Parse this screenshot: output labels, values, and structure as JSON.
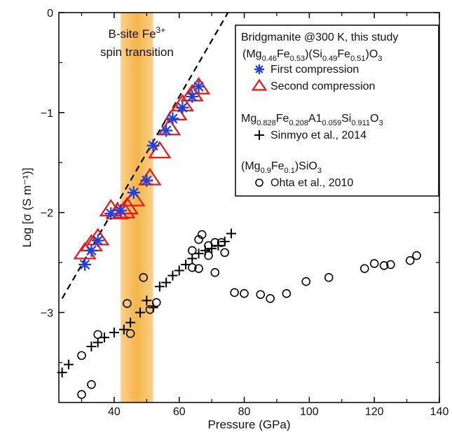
{
  "chart_data": {
    "type": "scatter",
    "xlabel": "Pressure (GPa)",
    "ylabel": "Log [σ (S m⁻¹)]",
    "xlim": [
      23,
      140
    ],
    "ylim": [
      -3.9,
      0
    ],
    "xticks": [
      40,
      60,
      80,
      100,
      120,
      140
    ],
    "yticks": [
      0,
      -1,
      -2,
      -3
    ],
    "xtick_labels": [
      "40",
      "60",
      "80",
      "100",
      "120",
      "140"
    ],
    "ytick_labels": [
      "0",
      "−1",
      "−2",
      "−3"
    ],
    "grid": false,
    "band": {
      "x_range": [
        42,
        52
      ],
      "color": "#f5b54a",
      "label_line1": "B-site Fe",
      "label_sup": "3+",
      "label_line2": "spin transition"
    },
    "fit_line": {
      "style": "dashed",
      "points": [
        [
          24,
          -2.86
        ],
        [
          75,
          0
        ]
      ]
    },
    "legend": {
      "position": "top-right",
      "title": "Bridgmanite @300 K, this study",
      "groups": [
        {
          "formula_parts": [
            [
              "(Mg",
              false
            ],
            [
              "0.46",
              true
            ],
            [
              "Fe",
              false
            ],
            [
              "0.53",
              true
            ],
            [
              ")(Si",
              false
            ],
            [
              "0.49",
              true
            ],
            [
              "Fe",
              false
            ],
            [
              "0.51",
              true
            ],
            [
              ")O",
              false
            ],
            [
              "3",
              true
            ]
          ],
          "entries": [
            {
              "series": 0,
              "label": "First  compression"
            },
            {
              "series": 1,
              "label": "Second compression"
            }
          ]
        },
        {
          "formula_parts": [
            [
              "Mg",
              false
            ],
            [
              "0.828",
              true
            ],
            [
              "Fe",
              false
            ],
            [
              "0.208",
              true
            ],
            [
              "A1",
              false
            ],
            [
              "0.059",
              true
            ],
            [
              "Si",
              false
            ],
            [
              "0.911",
              true
            ],
            [
              "O",
              false
            ],
            [
              "3",
              true
            ]
          ],
          "entries": [
            {
              "series": 2,
              "label": "Sinmyo et al., 2014"
            }
          ]
        },
        {
          "formula_parts": [
            [
              "(Mg",
              false
            ],
            [
              "0.9",
              true
            ],
            [
              "Fe",
              false
            ],
            [
              "0.1",
              true
            ],
            [
              ")SiO",
              false
            ],
            [
              "3",
              true
            ]
          ],
          "entries": [
            {
              "series": 3,
              "label": "Ohta et al., 2010"
            }
          ]
        }
      ]
    },
    "series": [
      {
        "name": "First  compression",
        "marker": "asterisk",
        "color": "#1f3fe0",
        "points": [
          [
            31,
            -2.52
          ],
          [
            33,
            -2.38
          ],
          [
            35,
            -2.28
          ],
          [
            39,
            -2.01
          ],
          [
            42,
            -1.98
          ],
          [
            46,
            -1.8
          ],
          [
            50,
            -1.68
          ],
          [
            52,
            -1.33
          ],
          [
            56,
            -1.18
          ],
          [
            58,
            -1.06
          ],
          [
            61,
            -0.95
          ],
          [
            64,
            -0.84
          ],
          [
            66,
            -0.74
          ]
        ]
      },
      {
        "name": "Second compression",
        "marker": "triangle",
        "color": "#e41d1d",
        "points": [
          [
            31,
            -2.4
          ],
          [
            33,
            -2.32
          ],
          [
            35,
            -2.26
          ],
          [
            39,
            -1.97
          ],
          [
            41,
            -2.0
          ],
          [
            43,
            -1.99
          ],
          [
            44,
            -1.95
          ],
          [
            46,
            -1.87
          ],
          [
            51,
            -1.66
          ],
          [
            54,
            -1.39
          ],
          [
            57,
            -1.16
          ],
          [
            59,
            -1.01
          ],
          [
            61,
            -0.92
          ],
          [
            64,
            -0.82
          ],
          [
            66,
            -0.75
          ]
        ]
      },
      {
        "name": "Sinmyo et al., 2014",
        "marker": "plus",
        "color": "#000000",
        "points": [
          [
            24,
            -3.6
          ],
          [
            26,
            -3.52
          ],
          [
            33,
            -3.34
          ],
          [
            35,
            -3.3
          ],
          [
            37,
            -3.25
          ],
          [
            40,
            -3.2
          ],
          [
            43,
            -3.17
          ],
          [
            45,
            -3.1
          ],
          [
            48,
            -3.0
          ],
          [
            50,
            -2.88
          ],
          [
            52,
            -2.95
          ],
          [
            54,
            -2.74
          ],
          [
            56,
            -2.7
          ],
          [
            58,
            -2.63
          ],
          [
            60,
            -2.58
          ],
          [
            62,
            -2.52
          ],
          [
            64,
            -2.46
          ],
          [
            66,
            -2.41
          ],
          [
            68,
            -2.38
          ],
          [
            70,
            -2.36
          ],
          [
            72,
            -2.33
          ],
          [
            74,
            -2.29
          ],
          [
            76,
            -2.21
          ]
        ]
      },
      {
        "name": "Ohta et al., 2010",
        "marker": "circle",
        "color": "#000000",
        "points": [
          [
            30,
            -3.82
          ],
          [
            30,
            -3.43
          ],
          [
            33,
            -3.72
          ],
          [
            35,
            -3.22
          ],
          [
            44,
            -2.91
          ],
          [
            45,
            -3.21
          ],
          [
            49,
            -2.65
          ],
          [
            51,
            -2.97
          ],
          [
            53,
            -2.9
          ],
          [
            64,
            -2.55
          ],
          [
            64,
            -2.38
          ],
          [
            66,
            -2.56
          ],
          [
            66,
            -2.27
          ],
          [
            67,
            -2.22
          ],
          [
            69,
            -2.43
          ],
          [
            69,
            -2.33
          ],
          [
            71,
            -2.3
          ],
          [
            71,
            -2.6
          ],
          [
            73,
            -2.3
          ],
          [
            74,
            -2.4
          ],
          [
            77,
            -2.8
          ],
          [
            80,
            -2.81
          ],
          [
            85,
            -2.82
          ],
          [
            88,
            -2.86
          ],
          [
            93,
            -2.81
          ],
          [
            99,
            -2.69
          ],
          [
            106,
            -2.65
          ],
          [
            117,
            -2.56
          ],
          [
            120,
            -2.51
          ],
          [
            123,
            -2.53
          ],
          [
            125,
            -2.52
          ],
          [
            131,
            -2.48
          ],
          [
            133,
            -2.43
          ]
        ]
      }
    ]
  }
}
